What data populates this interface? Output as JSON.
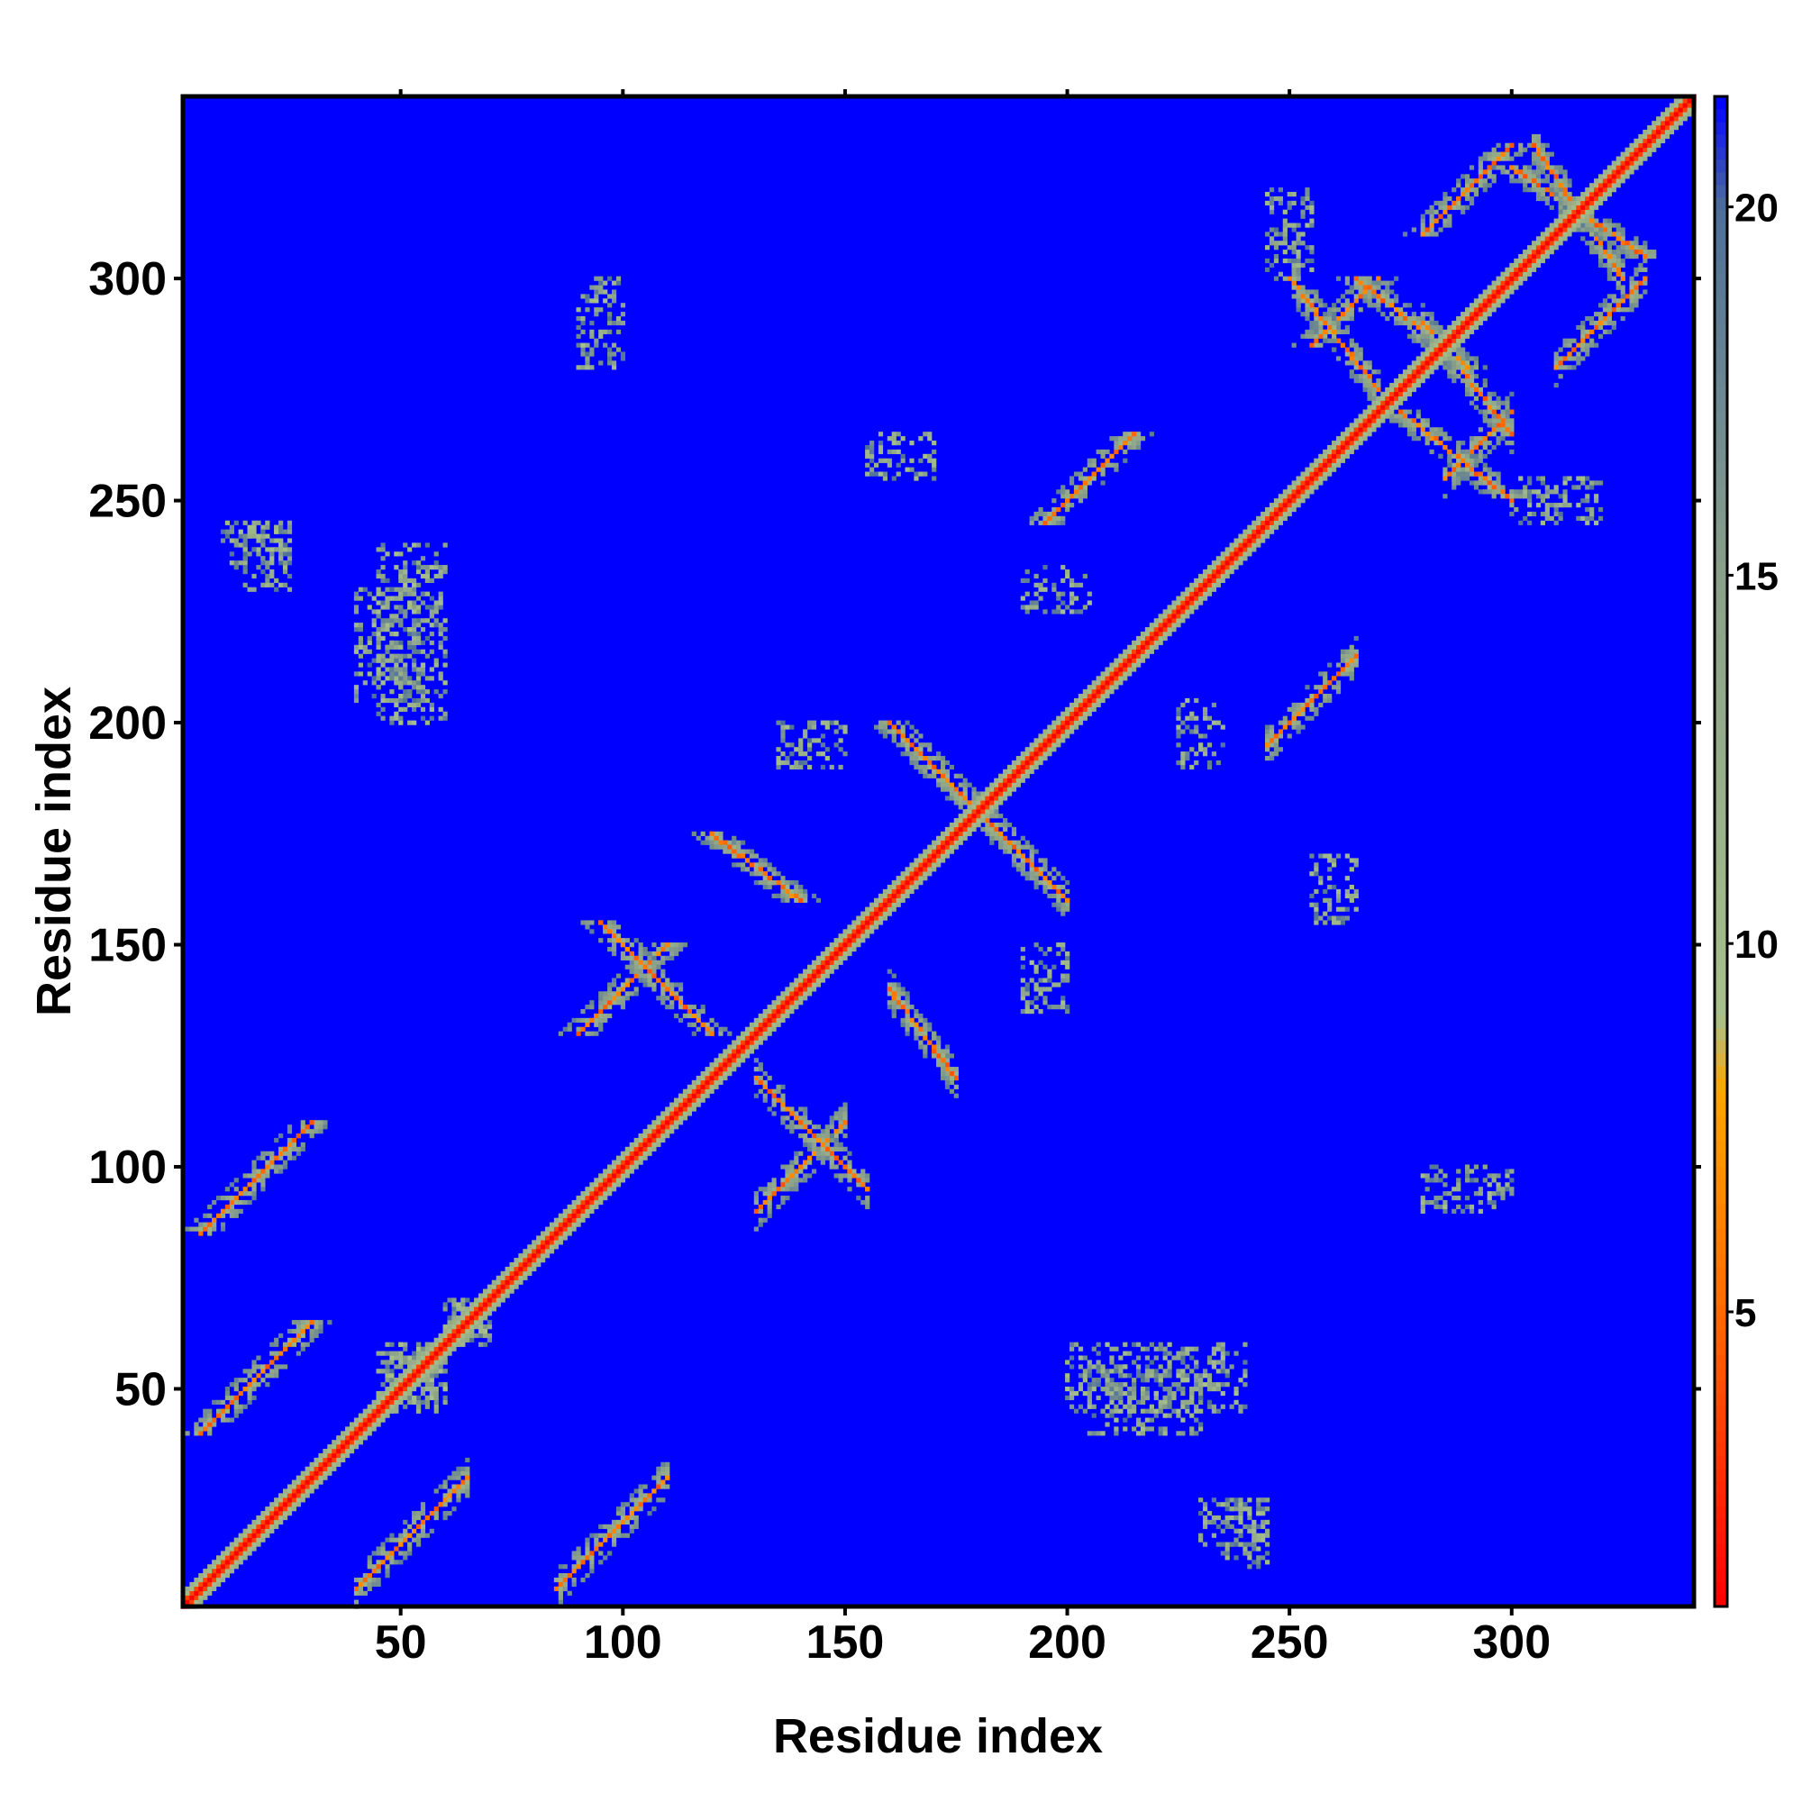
{
  "chart_data": {
    "type": "heatmap",
    "title": "",
    "xlabel": "Residue index",
    "ylabel": "Residue index",
    "xlim": [
      1,
      341
    ],
    "ylim": [
      1,
      341
    ],
    "x_ticks": [
      50,
      100,
      150,
      200,
      250,
      300
    ],
    "y_ticks": [
      50,
      100,
      150,
      200,
      250,
      300
    ],
    "colorbar": {
      "ticks": [
        5,
        10,
        15,
        20
      ],
      "range": [
        1,
        21.5
      ],
      "palette": [
        {
          "value": 1.0,
          "color": "#ff0000"
        },
        {
          "value": 5.0,
          "color": "#ff6a00"
        },
        {
          "value": 8.0,
          "color": "#ffa500"
        },
        {
          "value": 9.0,
          "color": "#a8c08a"
        },
        {
          "value": 15.0,
          "color": "#8aa08a"
        },
        {
          "value": 20.0,
          "color": "#4d6f9a"
        },
        {
          "value": 21.5,
          "color": "#0000ff"
        }
      ]
    },
    "background_color": "#0000ff",
    "contact_features": {
      "diagonal": {
        "from": 1,
        "to": 341
      },
      "parallel_bands": [
        [
          5,
          30,
          40,
          65
        ],
        [
          5,
          30,
          85,
          110
        ],
        [
          90,
          110,
          130,
          150
        ],
        [
          195,
          215,
          245,
          265
        ],
        [
          255,
          270,
          285,
          300
        ],
        [
          280,
          300,
          310,
          330
        ]
      ],
      "antiparallel_bands": [
        [
          95,
          120,
          130,
          155
        ],
        [
          120,
          140,
          160,
          175
        ],
        [
          160,
          180,
          180,
          200
        ],
        [
          265,
          290,
          280,
          300
        ],
        [
          300,
          330,
          305,
          325
        ],
        [
          275,
          300,
          250,
          270
        ]
      ],
      "clusters": [
        [
          45,
          60,
          45,
          60
        ],
        [
          40,
          55,
          205,
          230
        ],
        [
          235,
          245,
          10,
          25
        ],
        [
          200,
          240,
          45,
          60
        ],
        [
          15,
          25,
          230,
          245
        ],
        [
          135,
          150,
          190,
          200
        ],
        [
          90,
          100,
          280,
          300
        ],
        [
          225,
          235,
          190,
          205
        ],
        [
          60,
          70,
          60,
          70
        ],
        [
          155,
          170,
          255,
          265
        ],
        [
          300,
          320,
          245,
          255
        ]
      ]
    }
  }
}
